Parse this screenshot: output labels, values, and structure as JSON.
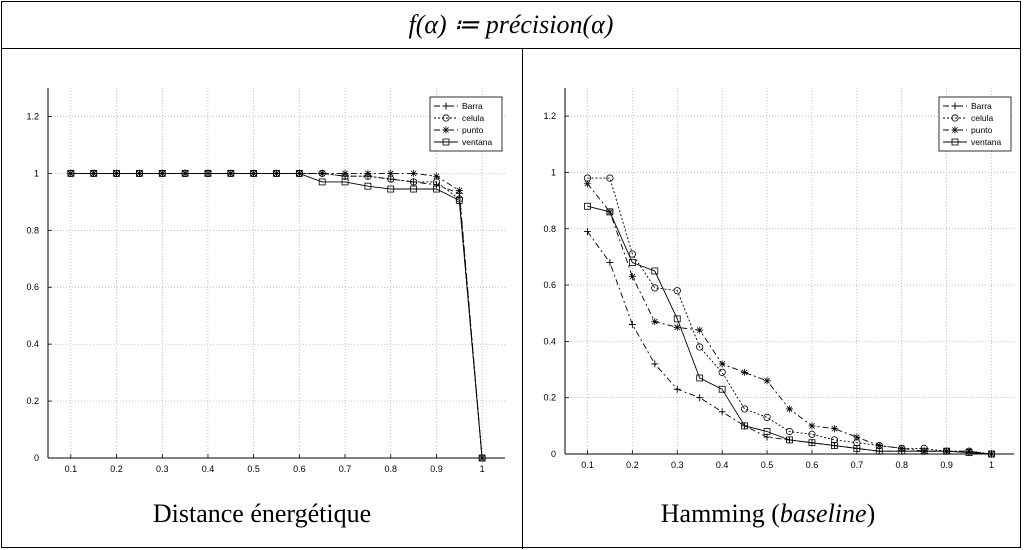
{
  "header": {
    "formula": "f(α) ≔ précision(α)"
  },
  "captions": [
    {
      "prefix": "Distance énergétique",
      "italic": "",
      "suffix": ""
    },
    {
      "prefix": "Hamming (",
      "italic": "baseline",
      "suffix": ")"
    }
  ],
  "chart_data": [
    {
      "type": "line",
      "title": "",
      "xlabel": "",
      "ylabel": "",
      "xlim": [
        0.05,
        1.05
      ],
      "ylim": [
        0,
        1.3
      ],
      "xticks": [
        0.1,
        0.2,
        0.3,
        0.4,
        0.5,
        0.6,
        0.7,
        0.8,
        0.9,
        1
      ],
      "yticks": [
        0,
        0.2,
        0.4,
        0.6,
        0.8,
        1,
        1.2
      ],
      "grid": true,
      "legend_position": "top-right",
      "x": [
        0.1,
        0.15,
        0.2,
        0.25,
        0.3,
        0.35,
        0.4,
        0.45,
        0.5,
        0.55,
        0.6,
        0.65,
        0.7,
        0.75,
        0.8,
        0.85,
        0.9,
        0.95,
        1.0
      ],
      "series": [
        {
          "name": "Barra",
          "marker": "plus",
          "dash": "6,3,2,3",
          "values": [
            1,
            1,
            1,
            1,
            1,
            1,
            1,
            1,
            1,
            1,
            1,
            1,
            0.99,
            0.99,
            0.98,
            0.97,
            0.96,
            0.93,
            0
          ]
        },
        {
          "name": "celula",
          "marker": "circle",
          "dash": "2,2",
          "values": [
            1,
            1,
            1,
            1,
            1,
            1,
            1,
            1,
            1,
            1,
            1,
            1,
            0.99,
            0.99,
            0.98,
            0.97,
            0.97,
            0.91,
            0
          ]
        },
        {
          "name": "punto",
          "marker": "star",
          "dash": "6,3,2,3",
          "values": [
            1,
            1,
            1,
            1,
            1,
            1,
            1,
            1,
            1,
            1,
            1,
            1,
            1,
            1,
            1,
            1,
            0.99,
            0.94,
            0
          ]
        },
        {
          "name": "ventana",
          "marker": "square",
          "dash": "",
          "values": [
            1,
            1,
            1,
            1,
            1,
            1,
            1,
            1,
            1,
            1,
            1,
            0.97,
            0.97,
            0.955,
            0.945,
            0.945,
            0.945,
            0.905,
            0
          ]
        }
      ]
    },
    {
      "type": "line",
      "title": "",
      "xlabel": "",
      "ylabel": "",
      "xlim": [
        0.05,
        1.05
      ],
      "ylim": [
        0,
        1.3
      ],
      "xticks": [
        0.1,
        0.2,
        0.3,
        0.4,
        0.5,
        0.6,
        0.7,
        0.8,
        0.9,
        1
      ],
      "yticks": [
        0,
        0.2,
        0.4,
        0.6,
        0.8,
        1,
        1.2
      ],
      "grid": true,
      "legend_position": "top-right",
      "x": [
        0.1,
        0.15,
        0.2,
        0.25,
        0.3,
        0.35,
        0.4,
        0.45,
        0.5,
        0.55,
        0.6,
        0.65,
        0.7,
        0.75,
        0.8,
        0.85,
        0.9,
        0.95,
        1.0
      ],
      "series": [
        {
          "name": "Barra",
          "marker": "plus",
          "dash": "6,3,2,3",
          "values": [
            0.79,
            0.68,
            0.46,
            0.32,
            0.23,
            0.2,
            0.15,
            0.1,
            0.06,
            0.05,
            0.04,
            0.03,
            0.02,
            0.01,
            0.01,
            0.01,
            0.01,
            0.005,
            0
          ]
        },
        {
          "name": "celula",
          "marker": "circle",
          "dash": "2,2",
          "values": [
            0.98,
            0.98,
            0.71,
            0.59,
            0.58,
            0.38,
            0.29,
            0.16,
            0.13,
            0.08,
            0.07,
            0.05,
            0.04,
            0.03,
            0.02,
            0.02,
            0.01,
            0.01,
            0
          ]
        },
        {
          "name": "punto",
          "marker": "star",
          "dash": "6,3,2,3",
          "values": [
            0.96,
            0.86,
            0.63,
            0.47,
            0.45,
            0.44,
            0.32,
            0.29,
            0.26,
            0.16,
            0.1,
            0.09,
            0.06,
            0.03,
            0.02,
            0.01,
            0.01,
            0.01,
            0
          ]
        },
        {
          "name": "ventana",
          "marker": "square",
          "dash": "",
          "values": [
            0.88,
            0.86,
            0.68,
            0.65,
            0.48,
            0.27,
            0.23,
            0.1,
            0.08,
            0.05,
            0.04,
            0.03,
            0.02,
            0.01,
            0.01,
            0.01,
            0.01,
            0.005,
            0
          ]
        }
      ]
    }
  ]
}
